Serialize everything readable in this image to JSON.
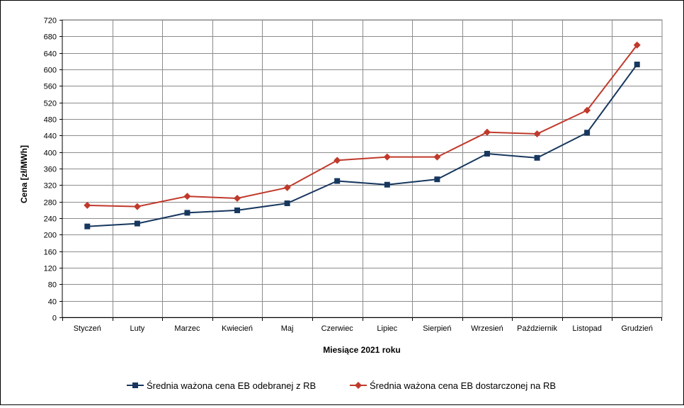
{
  "chart_data": {
    "type": "line",
    "title": "",
    "xlabel": "Miesiące 2021  roku",
    "ylabel": "Cena [zł/MWh]",
    "ylim": [
      0,
      720
    ],
    "ytick_step": 40,
    "grid": true,
    "legend": "bottom",
    "categories": [
      "Styczeń",
      "Luty",
      "Marzec",
      "Kwiecień",
      "Maj",
      "Czerwiec",
      "Lipiec",
      "Sierpień",
      "Wrzesień",
      "Październik",
      "Listopad",
      "Grudzień"
    ],
    "series": [
      {
        "name": "Średnia ważona cena EB odebranej z RB",
        "color": "#17375e",
        "marker": "square",
        "values": [
          220,
          227,
          253,
          259,
          276,
          330,
          321,
          334,
          396,
          386,
          447,
          612
        ]
      },
      {
        "name": "Średnia ważona cena EB dostarczonej na RB",
        "color": "#c0392b",
        "marker": "diamond",
        "values": [
          271,
          268,
          293,
          288,
          314,
          380,
          388,
          388,
          448,
          444,
          501,
          659
        ]
      }
    ]
  }
}
